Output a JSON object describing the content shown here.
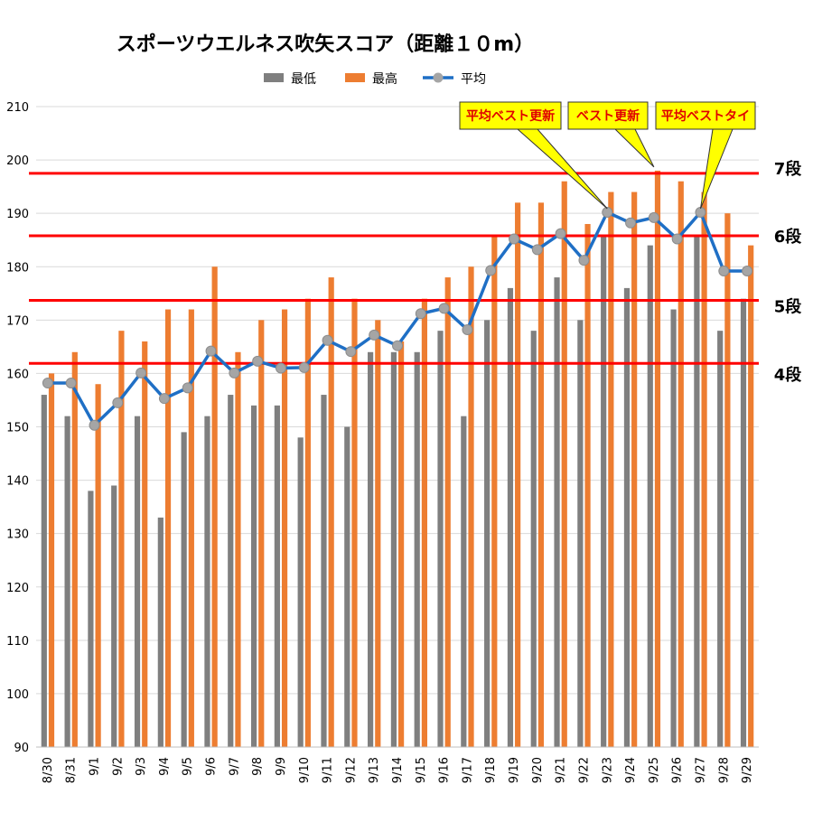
{
  "chart_data": {
    "type": "bar",
    "title": "スポーツウエルネス吹矢スコア（距離１０m）",
    "categories": [
      "8/30",
      "8/31",
      "9/1",
      "9/2",
      "9/3",
      "9/4",
      "9/5",
      "9/6",
      "9/7",
      "9/8",
      "9/9",
      "9/10",
      "9/11",
      "9/12",
      "9/13",
      "9/14",
      "9/15",
      "9/16",
      "9/17",
      "9/18",
      "9/19",
      "9/20",
      "9/21",
      "9/22",
      "9/23",
      "9/24",
      "9/25",
      "9/26",
      "9/27",
      "9/28",
      "9/29"
    ],
    "series": [
      {
        "name": "最低",
        "type": "bar",
        "color": "#7f7f7f",
        "values": [
          156,
          152,
          138,
          139,
          152,
          133,
          149,
          152,
          156,
          154,
          154,
          148,
          156,
          150,
          164,
          164,
          164,
          168,
          152,
          170,
          176,
          168,
          178,
          170,
          186,
          176,
          184,
          172,
          186,
          168,
          174
        ]
      },
      {
        "name": "最高",
        "type": "bar",
        "color": "#ed7d31",
        "values": [
          160,
          164,
          158,
          168,
          166,
          172,
          172,
          180,
          164,
          170,
          172,
          174,
          178,
          174,
          170,
          166,
          174,
          178,
          180,
          186,
          192,
          192,
          196,
          188,
          194,
          194,
          198,
          196,
          194,
          190,
          184
        ]
      },
      {
        "name": "平均",
        "type": "line",
        "color": "#1f6fc5",
        "marker_color": "#a5a5a5",
        "values": [
          158.2,
          158.2,
          150.3,
          154.5,
          160.1,
          155.3,
          157.3,
          164.2,
          160.1,
          162.3,
          161.0,
          161.1,
          166.2,
          164.1,
          167.2,
          165.2,
          171.2,
          172.2,
          168.2,
          179.3,
          185.2,
          183.2,
          186.2,
          181.2,
          190.2,
          188.2,
          189.2,
          185.2,
          190.2,
          179.2,
          179.2
        ]
      }
    ],
    "ylim": [
      90,
      210
    ],
    "yticks": [
      90,
      100,
      110,
      120,
      130,
      140,
      150,
      160,
      170,
      180,
      190,
      200,
      210
    ],
    "xlabel": "",
    "ylabel": "",
    "grid": true,
    "legend_position": "top",
    "thresholds": [
      {
        "label": "7段",
        "value": 197.5,
        "color": "#ff0000"
      },
      {
        "label": "6段",
        "value": 185.8,
        "color": "#ff0000"
      },
      {
        "label": "5段",
        "value": 173.7,
        "color": "#ff0000"
      },
      {
        "label": "4段",
        "value": 161.9,
        "color": "#ff0000"
      }
    ],
    "annotations": [
      {
        "text": "平均ベスト更新",
        "target_category": "9/23",
        "target_series": "平均"
      },
      {
        "text": "ベスト更新",
        "target_category": "9/25",
        "target_series": "最高"
      },
      {
        "text": "平均ベストタイ",
        "target_category": "9/27",
        "target_series": "平均"
      }
    ],
    "callout_fill": "#ffff00",
    "callout_border": "#333333"
  }
}
